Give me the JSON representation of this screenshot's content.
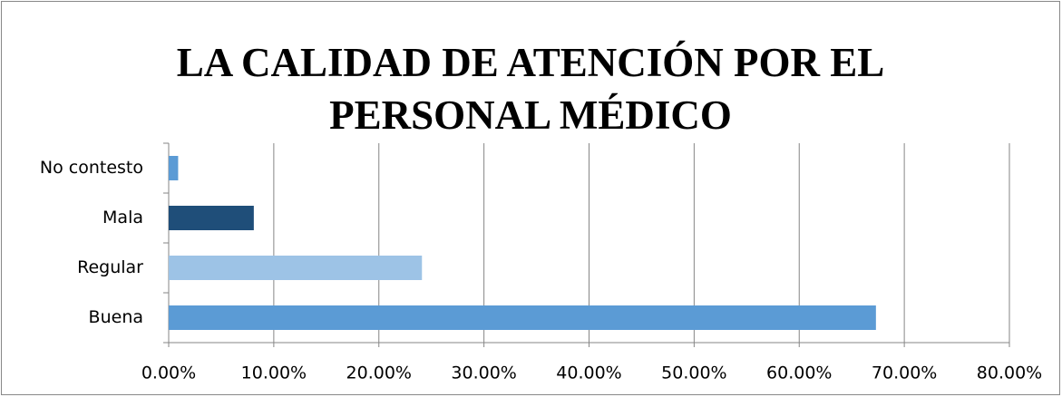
{
  "chart_data": {
    "type": "bar",
    "orientation": "horizontal",
    "title": "LA CALIDAD DE ATENCIÓN POR EL PERSONAL MÉDICO",
    "categories": [
      "Buena",
      "Regular",
      "Mala",
      "No contesto"
    ],
    "values": [
      67.3,
      24.1,
      8.1,
      0.9
    ],
    "colors": [
      "#5b9bd5",
      "#9dc3e6",
      "#1f4e79",
      "#5b9bd5"
    ],
    "xlim": [
      0,
      80
    ],
    "xticks": [
      {
        "value": 0,
        "label": "0.00%"
      },
      {
        "value": 10,
        "label": "10.00%"
      },
      {
        "value": 20,
        "label": "20.00%"
      },
      {
        "value": 30,
        "label": "30.00%"
      },
      {
        "value": 40,
        "label": "40.00%"
      },
      {
        "value": 50,
        "label": "50.00%"
      },
      {
        "value": 60,
        "label": "60.00%"
      },
      {
        "value": 70,
        "label": "70.00%"
      },
      {
        "value": 80,
        "label": "80.00%"
      }
    ],
    "grid": true
  }
}
